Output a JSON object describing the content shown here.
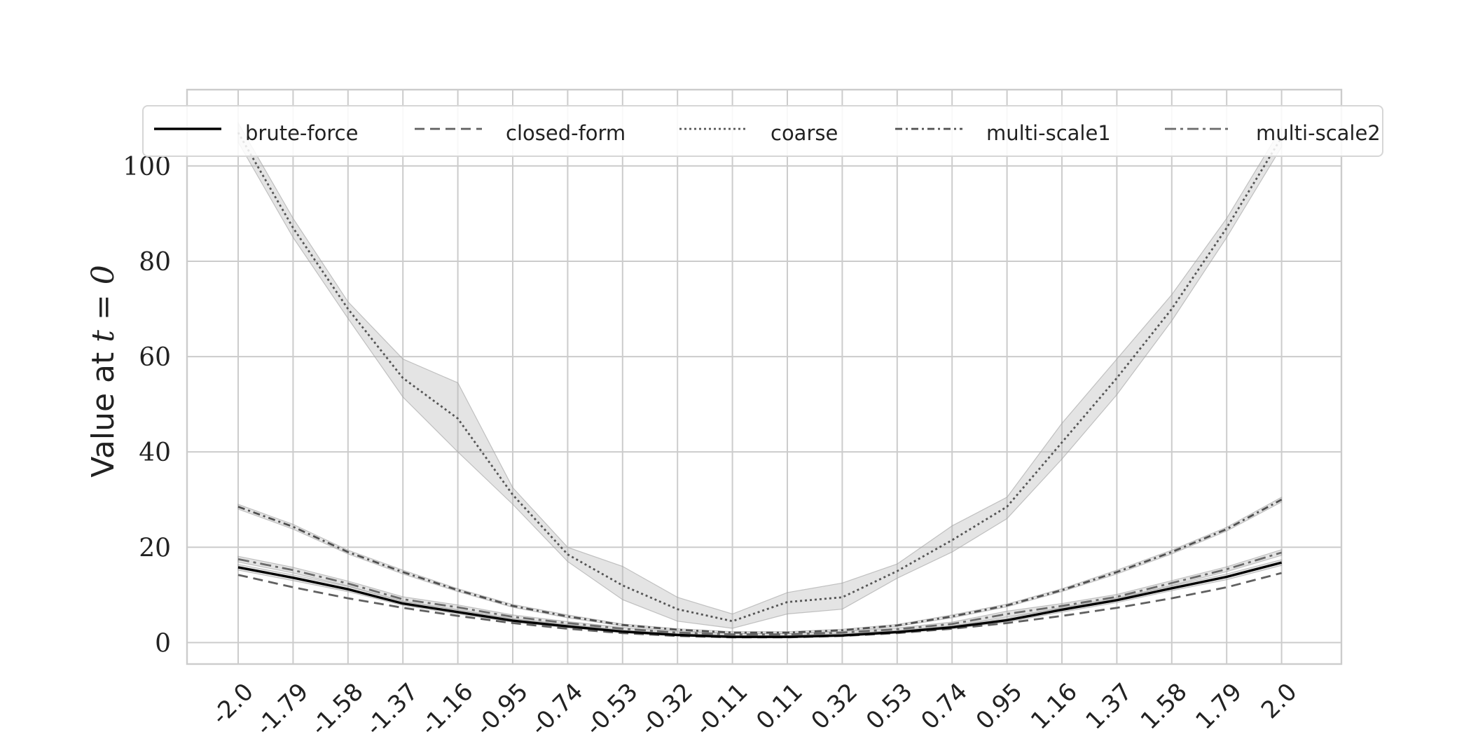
{
  "chart_data": {
    "type": "line",
    "title": "",
    "xlabel": "",
    "ylabel_prefix": "Value at ",
    "ylabel_math": "t = 0",
    "x_categories": [
      "-2.0",
      "-1.79",
      "-1.58",
      "-1.37",
      "-1.16",
      "-0.95",
      "-0.74",
      "-0.53",
      "-0.32",
      "-0.11",
      "0.11",
      "0.32",
      "0.53",
      "0.74",
      "0.95",
      "1.16",
      "1.37",
      "1.58",
      "1.79",
      "2.0"
    ],
    "y_ticks": [
      "0",
      "20",
      "40",
      "60",
      "80",
      "100"
    ],
    "ylim": [
      -4.5,
      116
    ],
    "grid": true,
    "legend_position": "top",
    "series": [
      {
        "name": "brute-force",
        "style": "solid",
        "color": "#000000",
        "values": [
          15.8,
          13.6,
          11.2,
          8.2,
          6.4,
          4.6,
          3.4,
          2.3,
          1.6,
          1.2,
          1.2,
          1.5,
          2.2,
          3.2,
          4.7,
          6.9,
          8.9,
          11.4,
          13.8,
          16.8
        ],
        "band_low": [
          15.2,
          13.0,
          10.7,
          7.8,
          6.0,
          4.3,
          3.1,
          2.1,
          1.4,
          1.0,
          1.0,
          1.3,
          2.0,
          2.9,
          4.3,
          6.4,
          8.4,
          10.9,
          13.2,
          16.2
        ],
        "band_high": [
          16.4,
          14.2,
          11.8,
          8.7,
          6.8,
          5.0,
          3.7,
          2.6,
          1.8,
          1.5,
          1.5,
          1.8,
          2.5,
          3.5,
          5.1,
          7.4,
          9.4,
          11.9,
          14.4,
          17.4
        ]
      },
      {
        "name": "closed-form",
        "style": "dashed",
        "color": "#606060",
        "values": [
          14.2,
          11.6,
          9.3,
          7.3,
          5.6,
          4.1,
          2.9,
          2.0,
          1.4,
          1.1,
          1.1,
          1.4,
          2.0,
          2.9,
          4.1,
          5.6,
          7.3,
          9.3,
          11.6,
          14.6
        ],
        "band_low": [],
        "band_high": []
      },
      {
        "name": "coarse",
        "style": "dotted",
        "color": "#555555",
        "values": [
          107.0,
          87.0,
          70.0,
          55.5,
          47.0,
          31.0,
          18.5,
          12.0,
          7.0,
          4.5,
          8.5,
          9.5,
          15.0,
          21.5,
          28.5,
          42.0,
          55.5,
          70.0,
          87.0,
          106.0
        ],
        "band_low": [
          105.0,
          85.0,
          68.0,
          51.5,
          40.0,
          29.0,
          17.0,
          9.0,
          4.5,
          3.0,
          6.0,
          7.0,
          13.5,
          19.0,
          26.0,
          38.5,
          52.0,
          67.5,
          85.0,
          104.0
        ],
        "band_high": [
          109.0,
          89.0,
          71.5,
          59.5,
          54.5,
          32.5,
          20.0,
          16.0,
          9.5,
          6.0,
          10.5,
          12.5,
          16.5,
          24.5,
          30.5,
          46.0,
          59.5,
          73.0,
          89.0,
          108.0
        ]
      },
      {
        "name": "multi-scale1",
        "style": "dashdot",
        "color": "#505050",
        "values": [
          28.5,
          24.3,
          19.0,
          14.8,
          11.0,
          7.7,
          5.5,
          3.7,
          2.7,
          2.1,
          2.1,
          2.6,
          3.6,
          5.5,
          7.8,
          11.0,
          14.8,
          19.0,
          23.8,
          30.0
        ],
        "band_low": [
          28.0,
          23.8,
          18.6,
          14.4,
          10.7,
          7.4,
          5.2,
          3.5,
          2.5,
          1.9,
          1.9,
          2.4,
          3.4,
          5.2,
          7.5,
          10.7,
          14.4,
          18.6,
          23.4,
          29.5
        ],
        "band_high": [
          29.0,
          24.8,
          19.4,
          15.2,
          11.3,
          8.0,
          5.8,
          3.9,
          2.9,
          2.3,
          2.3,
          2.8,
          3.8,
          5.8,
          8.1,
          11.3,
          15.2,
          19.4,
          24.2,
          30.5
        ]
      },
      {
        "name": "multi-scale2",
        "style": "dashdot-long",
        "color": "#6a6a6a",
        "values": [
          17.5,
          15.2,
          12.4,
          9.1,
          7.4,
          5.4,
          4.1,
          2.9,
          2.1,
          1.7,
          1.7,
          2.1,
          2.8,
          3.9,
          6.0,
          7.7,
          9.6,
          12.5,
          15.4,
          18.9
        ],
        "band_low": [
          16.9,
          14.6,
          11.9,
          8.6,
          6.9,
          5.0,
          3.8,
          2.6,
          1.9,
          1.5,
          1.5,
          1.9,
          2.5,
          3.5,
          5.4,
          7.2,
          9.1,
          12.0,
          14.9,
          18.3
        ],
        "band_high": [
          18.1,
          15.8,
          12.9,
          9.6,
          7.9,
          5.8,
          4.4,
          3.2,
          2.3,
          1.9,
          1.9,
          2.3,
          3.1,
          4.3,
          6.6,
          8.2,
          10.1,
          13.0,
          15.9,
          19.5
        ]
      }
    ]
  }
}
